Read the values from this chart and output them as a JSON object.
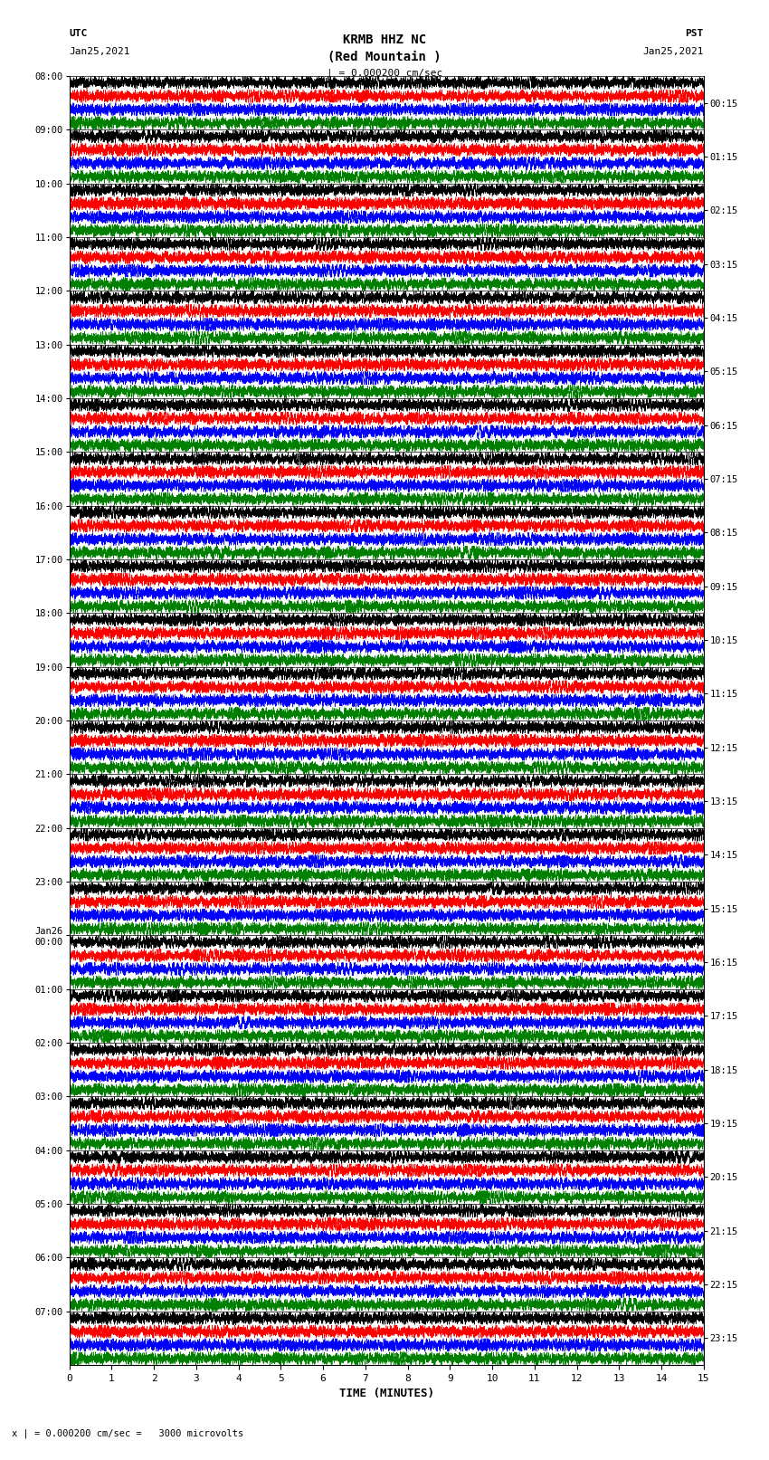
{
  "title_line1": "KRMB HHZ NC",
  "title_line2": "(Red Mountain )",
  "scale_bar": "| = 0.000200 cm/sec",
  "left_label_top": "UTC",
  "left_label_date": "Jan25,2021",
  "right_label_top": "PST",
  "right_label_date": "Jan25,2021",
  "bottom_label": "TIME (MINUTES)",
  "bottom_note": "x | = 0.000200 cm/sec =   3000 microvolts",
  "xlabel_ticks": [
    0,
    1,
    2,
    3,
    4,
    5,
    6,
    7,
    8,
    9,
    10,
    11,
    12,
    13,
    14,
    15
  ],
  "left_times": [
    "08:00",
    "09:00",
    "10:00",
    "11:00",
    "12:00",
    "13:00",
    "14:00",
    "15:00",
    "16:00",
    "17:00",
    "18:00",
    "19:00",
    "20:00",
    "21:00",
    "22:00",
    "23:00",
    "Jan26\n00:00",
    "01:00",
    "02:00",
    "03:00",
    "04:00",
    "05:00",
    "06:00",
    "07:00"
  ],
  "right_times": [
    "00:15",
    "01:15",
    "02:15",
    "03:15",
    "04:15",
    "05:15",
    "06:15",
    "07:15",
    "08:15",
    "09:15",
    "10:15",
    "11:15",
    "12:15",
    "13:15",
    "14:15",
    "15:15",
    "16:15",
    "17:15",
    "18:15",
    "19:15",
    "20:15",
    "21:15",
    "22:15",
    "23:15"
  ],
  "n_rows": 24,
  "traces_per_row": 4,
  "colors": [
    "black",
    "red",
    "blue",
    "green"
  ],
  "bg_color": "white",
  "fig_width": 8.5,
  "fig_height": 16.13,
  "dpi": 100,
  "minutes": 15,
  "samples_per_minute": 600
}
